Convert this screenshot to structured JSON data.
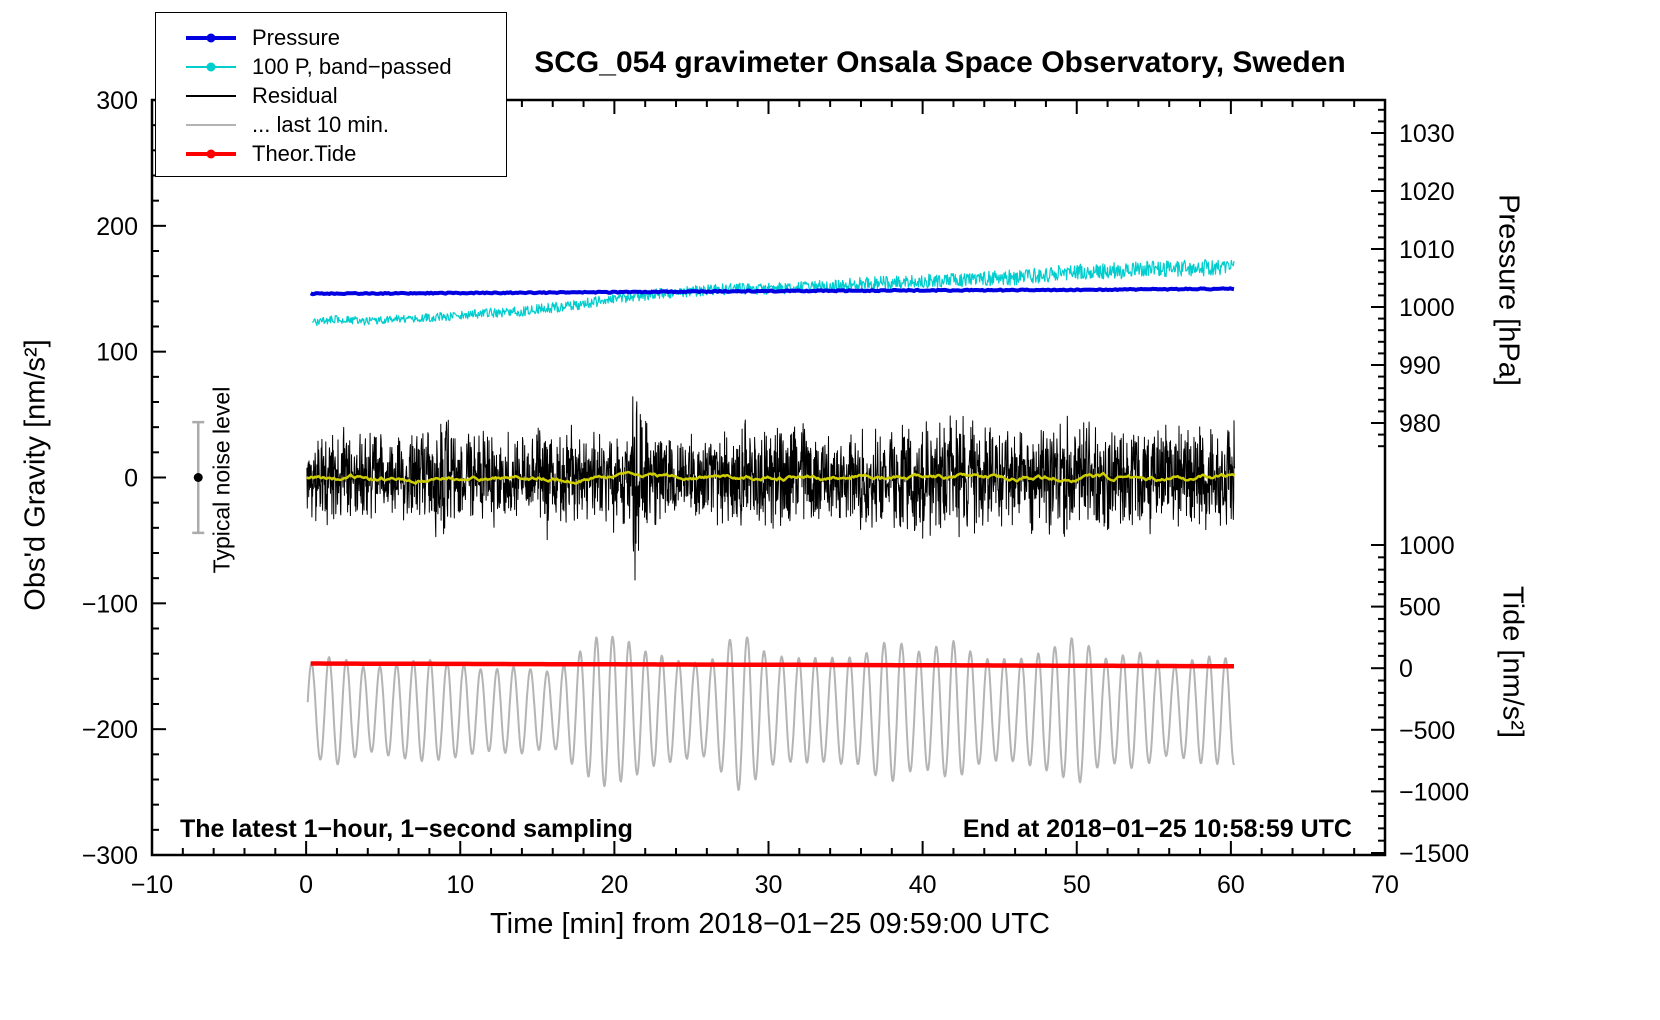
{
  "annotations": {
    "sampling": "The latest 1−hour, 1−second sampling",
    "end_time": "End at 2018−01−25 10:58:59 UTC"
  },
  "legend": {
    "position": "top-left",
    "items": [
      {
        "label": "Pressure",
        "series": "pressure",
        "marker": true
      },
      {
        "label": "100 P, band−passed",
        "series": "band_passed",
        "marker": true
      },
      {
        "label": "Residual",
        "series": "residual",
        "marker": false
      },
      {
        "label": "... last 10 min.",
        "series": "last10",
        "marker": false
      },
      {
        "label": "Theor.Tide",
        "series": "theor_tide",
        "marker": true
      }
    ]
  },
  "chart_data": {
    "type": "line",
    "title": "SCG_054 gravimeter Onsala Space Observatory, Sweden",
    "xlabel": "Time [min] from 2018−01−25 09:59:00 UTC",
    "ylabel_left": "Obs'd Gravity [nm/s²]",
    "ylabel_pressure": "Pressure [hPa]",
    "ylabel_tide": "Tide [nm/s²]",
    "x_range": [
      -10,
      70
    ],
    "gravity_range": [
      -300,
      300
    ],
    "x_ticks": [
      -10,
      0,
      10,
      20,
      30,
      40,
      50,
      60,
      70
    ],
    "x_minor_step": 2,
    "gravity_ticks": [
      -300,
      -200,
      -100,
      0,
      100,
      200,
      300
    ],
    "gravity_minor_step": 20,
    "pressure_ticks": [
      1030,
      1020,
      1010,
      1000,
      990,
      980
    ],
    "pressure_minor_step": 2,
    "tide_ticks": [
      1000,
      500,
      0,
      -500,
      -1000,
      -1500
    ],
    "tide_minor_step": 100,
    "grid": false,
    "noise_marker": {
      "t": -7,
      "value": 0,
      "error": 22,
      "label": "Typical noise level"
    },
    "series": [
      {
        "name": "band_passed",
        "axis": "gravity",
        "color": "#00cdcd",
        "width": 1.2,
        "kind": "noisy_trend",
        "n": 1400,
        "t0": 0.4,
        "t1": 60.2,
        "trend": [
          [
            0.4,
            123
          ],
          [
            2,
            126
          ],
          [
            4,
            124
          ],
          [
            6,
            126
          ],
          [
            8,
            127
          ],
          [
            10,
            129
          ],
          [
            12,
            131
          ],
          [
            14,
            132
          ],
          [
            16,
            135
          ],
          [
            18,
            138
          ],
          [
            20,
            142
          ],
          [
            22,
            145
          ],
          [
            24,
            147
          ],
          [
            26,
            149
          ],
          [
            28,
            150
          ],
          [
            30,
            150
          ],
          [
            32,
            151
          ],
          [
            34,
            152
          ],
          [
            36,
            154
          ],
          [
            38,
            155
          ],
          [
            40,
            156
          ],
          [
            42,
            157
          ],
          [
            44,
            158
          ],
          [
            46,
            159
          ],
          [
            48,
            161
          ],
          [
            50,
            164
          ],
          [
            52,
            164
          ],
          [
            54,
            165
          ],
          [
            56,
            166
          ],
          [
            58,
            166
          ],
          [
            60.2,
            169
          ]
        ],
        "noise_amp": [
          [
            0.4,
            3
          ],
          [
            15,
            4
          ],
          [
            30,
            4.5
          ],
          [
            45,
            6
          ],
          [
            60.2,
            7
          ]
        ]
      },
      {
        "name": "pressure",
        "axis": "pressure",
        "color": "#0000e0",
        "width": 4,
        "kind": "trend",
        "n": 500,
        "t0": 0.3,
        "t1": 60.2,
        "jitter": 0.1,
        "trend": [
          [
            0.3,
            1002.3
          ],
          [
            10,
            1002.4
          ],
          [
            20,
            1002.55
          ],
          [
            30,
            1002.75
          ],
          [
            40,
            1002.85
          ],
          [
            50,
            1002.95
          ],
          [
            60.2,
            1003.15
          ]
        ]
      },
      {
        "name": "residual",
        "axis": "gravity",
        "color": "#000000",
        "width": 1,
        "kind": "noise_band",
        "n": 2600,
        "t0": 0.05,
        "t1": 60.25,
        "envelope": [
          [
            0,
            36
          ],
          [
            1.5,
            48
          ],
          [
            3,
            38
          ],
          [
            4.5,
            42
          ],
          [
            6,
            36
          ],
          [
            7.5,
            46
          ],
          [
            9,
            55
          ],
          [
            10.5,
            40
          ],
          [
            12,
            44
          ],
          [
            13.5,
            40
          ],
          [
            15,
            42
          ],
          [
            15.8,
            58
          ],
          [
            16.5,
            44
          ],
          [
            18,
            40
          ],
          [
            19.5,
            46
          ],
          [
            21,
            52
          ],
          [
            21.4,
            95
          ],
          [
            21.8,
            60
          ],
          [
            22.5,
            44
          ],
          [
            24,
            40
          ],
          [
            25.5,
            44
          ],
          [
            27,
            42
          ],
          [
            28.5,
            50
          ],
          [
            30,
            46
          ],
          [
            31.5,
            50
          ],
          [
            33,
            44
          ],
          [
            34.5,
            46
          ],
          [
            36,
            42
          ],
          [
            37.5,
            46
          ],
          [
            39,
            50
          ],
          [
            40.5,
            56
          ],
          [
            42,
            60
          ],
          [
            43.5,
            50
          ],
          [
            45,
            46
          ],
          [
            46.5,
            44
          ],
          [
            48,
            50
          ],
          [
            49.5,
            54
          ],
          [
            51,
            46
          ],
          [
            52.5,
            44
          ],
          [
            54,
            50
          ],
          [
            55.5,
            46
          ],
          [
            57,
            50
          ],
          [
            58.5,
            46
          ],
          [
            60.25,
            48
          ]
        ]
      },
      {
        "name": "residual_mean",
        "axis": "gravity",
        "color": "#cdcd00",
        "width": 2.5,
        "kind": "smooth_noise",
        "n": 700,
        "t0": 0.05,
        "t1": 60.25,
        "baseline": 0,
        "amp": 5
      },
      {
        "name": "last10",
        "axis": "gravity",
        "color": "#b4b4b4",
        "width": 2,
        "kind": "oscillation",
        "n": 1500,
        "t0": 0.1,
        "t1": 60.2,
        "baseline": -185,
        "period": 1.0,
        "amp": [
          [
            0,
            40
          ],
          [
            2,
            46
          ],
          [
            4,
            34
          ],
          [
            6,
            36
          ],
          [
            8,
            40
          ],
          [
            10,
            36
          ],
          [
            12,
            32
          ],
          [
            14,
            34
          ],
          [
            16,
            30
          ],
          [
            18,
            48
          ],
          [
            19,
            58
          ],
          [
            20,
            60
          ],
          [
            21,
            56
          ],
          [
            22,
            48
          ],
          [
            24,
            40
          ],
          [
            26,
            36
          ],
          [
            28,
            62
          ],
          [
            29,
            58
          ],
          [
            30,
            44
          ],
          [
            32,
            42
          ],
          [
            34,
            40
          ],
          [
            36,
            44
          ],
          [
            37,
            52
          ],
          [
            38,
            56
          ],
          [
            40,
            46
          ],
          [
            42,
            56
          ],
          [
            44,
            42
          ],
          [
            46,
            40
          ],
          [
            48,
            46
          ],
          [
            50,
            58
          ],
          [
            52,
            42
          ],
          [
            54,
            46
          ],
          [
            56,
            36
          ],
          [
            58,
            42
          ],
          [
            60.2,
            44
          ]
        ]
      },
      {
        "name": "theor_tide",
        "axis": "tide",
        "color": "#ff0000",
        "width": 4.5,
        "kind": "trend",
        "n": 200,
        "t0": 0.3,
        "t1": 60.2,
        "jitter": 0,
        "trend": [
          [
            0.3,
            38
          ],
          [
            30,
            28
          ],
          [
            60.2,
            16
          ]
        ]
      }
    ]
  }
}
